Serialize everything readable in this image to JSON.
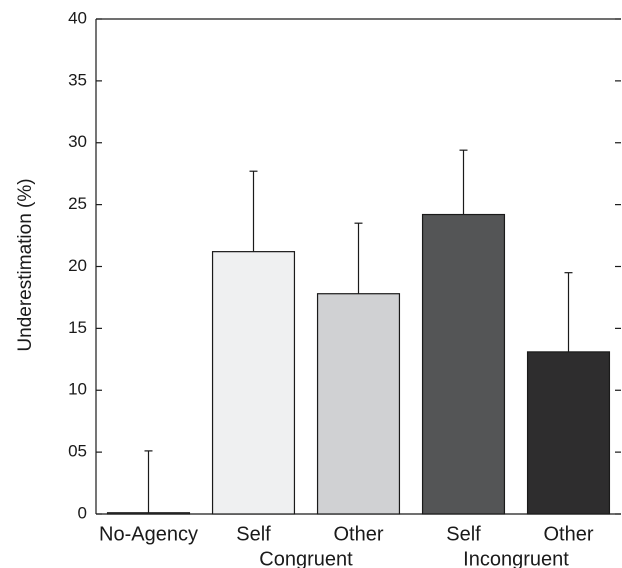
{
  "chart_data": {
    "type": "bar",
    "ylabel": "Underestimation (%)",
    "xlabel": "",
    "ylim": [
      0,
      40
    ],
    "yticks": [
      0,
      5,
      10,
      15,
      20,
      25,
      30,
      35,
      40
    ],
    "ytick_labels": [
      "0",
      "05",
      "10",
      "15",
      "20",
      "25",
      "30",
      "35",
      "40"
    ],
    "categories": [
      "No-Agency",
      "Self",
      "Other",
      "Self",
      "Other"
    ],
    "values": [
      0.1,
      21.2,
      17.8,
      24.2,
      13.1
    ],
    "error_upper": [
      5.1,
      27.7,
      23.5,
      29.4,
      19.5
    ],
    "bar_colors": [
      "#ffffff",
      "#eff0f1",
      "#d0d1d3",
      "#545556",
      "#2e2d2e"
    ],
    "groups": [
      {
        "label": "Congruent",
        "categories": [
          1,
          2
        ]
      },
      {
        "label": "Incongruent",
        "categories": [
          3,
          4
        ]
      }
    ],
    "grid": false
  }
}
